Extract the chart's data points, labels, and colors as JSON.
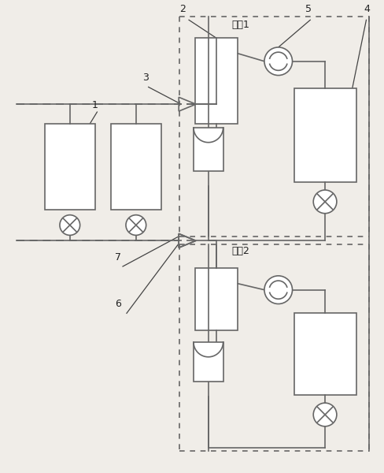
{
  "bg_color": "#f0ede8",
  "line_color": "#666666",
  "label_color": "#222222",
  "figsize": [
    4.88,
    6.0
  ],
  "dpi": 100,
  "module1_label": "模块1",
  "module2_label": "模块2"
}
